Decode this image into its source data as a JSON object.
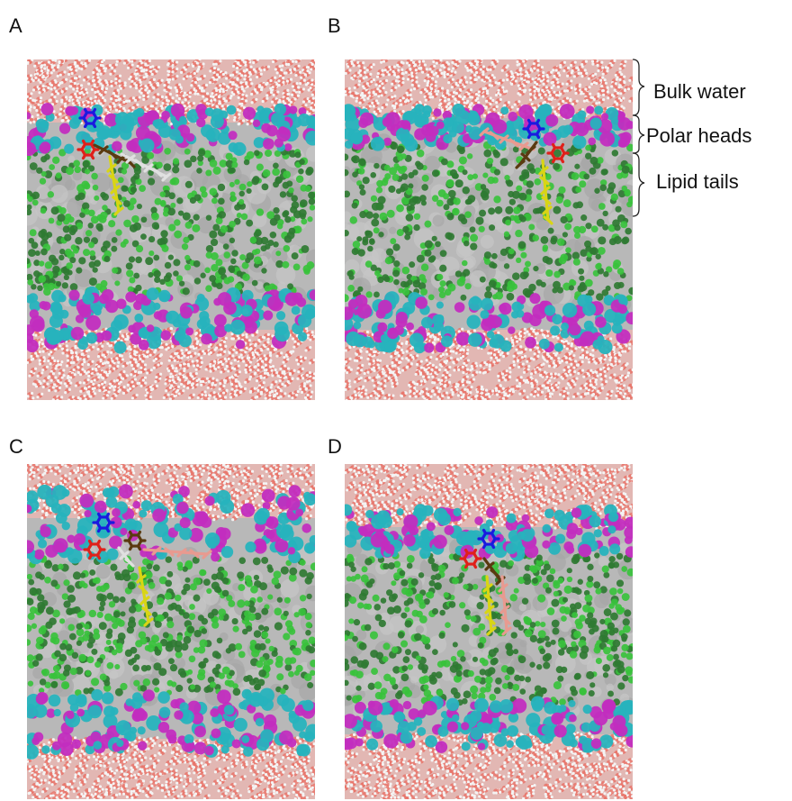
{
  "panels": [
    {
      "label": "A",
      "molecule_arrangement": "tails-down-left"
    },
    {
      "label": "B",
      "molecule_arrangement": "tails-down-right"
    },
    {
      "label": "C",
      "molecule_arrangement": "tails-spread"
    },
    {
      "label": "D",
      "molecule_arrangement": "tails-compact"
    }
  ],
  "annotations": {
    "bulk_water": "Bulk water",
    "polar_heads": "Polar heads",
    "lipid_tails": "Lipid tails"
  },
  "colors": {
    "water_oxygen": "#e8756b",
    "water_hydrogen": "#f4f4f4",
    "head_cyan": "#27b3bd",
    "head_magenta": "#c22dbf",
    "tail_green_light": "#38c23c",
    "tail_green_dark": "#2f7a32",
    "membrane_gray": "#aaaaaa",
    "molecule_blue": "#1a1adf",
    "molecule_red": "#e0201a",
    "molecule_brown": "#5a3a10",
    "molecule_yellow": "#d9d514",
    "molecule_gray": "#e0e0e0",
    "molecule_pink": "#e89a90"
  }
}
